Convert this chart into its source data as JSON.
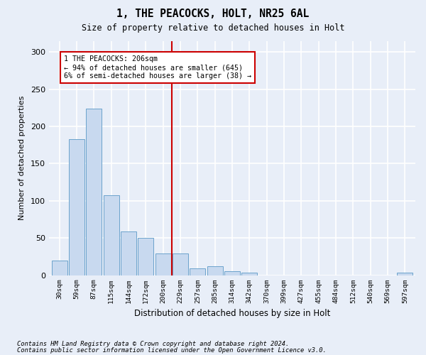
{
  "title": "1, THE PEACOCKS, HOLT, NR25 6AL",
  "subtitle": "Size of property relative to detached houses in Holt",
  "xlabel": "Distribution of detached houses by size in Holt",
  "ylabel": "Number of detached properties",
  "bar_labels": [
    "30sqm",
    "59sqm",
    "87sqm",
    "115sqm",
    "144sqm",
    "172sqm",
    "200sqm",
    "229sqm",
    "257sqm",
    "285sqm",
    "314sqm",
    "342sqm",
    "370sqm",
    "399sqm",
    "427sqm",
    "455sqm",
    "484sqm",
    "512sqm",
    "540sqm",
    "569sqm",
    "597sqm"
  ],
  "bar_values": [
    20,
    183,
    224,
    107,
    59,
    50,
    29,
    29,
    9,
    12,
    5,
    3,
    0,
    0,
    0,
    0,
    0,
    0,
    0,
    0,
    3
  ],
  "bar_color": "#c8d9ef",
  "bar_edge_color": "#6ba3cc",
  "property_label": "1 THE PEACOCKS: 206sqm",
  "annotation_line1": "← 94% of detached houses are smaller (645)",
  "annotation_line2": "6% of semi-detached houses are larger (38) →",
  "vline_color": "#cc0000",
  "annotation_box_facecolor": "#ffffff",
  "annotation_box_edgecolor": "#cc0000",
  "ylim": [
    0,
    315
  ],
  "yticks": [
    0,
    50,
    100,
    150,
    200,
    250,
    300
  ],
  "footnote1": "Contains HM Land Registry data © Crown copyright and database right 2024.",
  "footnote2": "Contains public sector information licensed under the Open Government Licence v3.0.",
  "bg_color": "#e8eef8",
  "plot_bg_color": "#e8eef8",
  "grid_color": "#ffffff",
  "vline_x_index": 6.5
}
